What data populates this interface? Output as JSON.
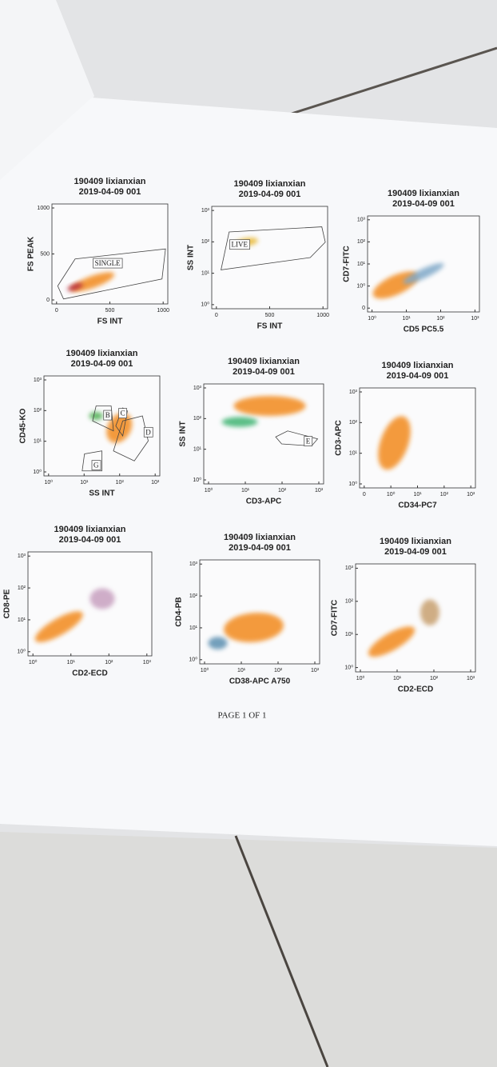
{
  "panels": [
    {
      "title": "190409 lixianxian",
      "subtitle": "2019-04-09 001",
      "x_label": "FS INT",
      "y_label": "FS PEAK",
      "x_ticks": [
        "0",
        "500",
        "1000"
      ],
      "y_ticks": [
        "0",
        "500",
        "1000"
      ],
      "gates": [
        "SINGLE"
      ]
    },
    {
      "title": "190409 lixianxian",
      "subtitle": "2019-04-09 001",
      "x_label": "FS INT",
      "y_label": "SS INT",
      "x_ticks": [
        "0",
        "500",
        "1000"
      ],
      "y_ticks": [
        "10⁰",
        "10¹",
        "10²",
        "10³"
      ],
      "gates": [
        "LIVE"
      ]
    },
    {
      "title": "190409 lixianxian",
      "subtitle": "2019-04-09 001",
      "x_label": "CD5 PC5.5",
      "y_label": "CD7-FITC",
      "x_ticks": [
        "10⁰",
        "10¹",
        "10²",
        "10³"
      ],
      "y_ticks": [
        "0",
        "10⁰",
        "10¹",
        "10²",
        "10³"
      ],
      "gates": []
    },
    {
      "title": "190409 lixianxian",
      "subtitle": "2019-04-09 001",
      "x_label": "SS INT",
      "y_label": "CD45-KO",
      "x_ticks": [
        "10⁰",
        "10¹",
        "10²",
        "10³"
      ],
      "y_ticks": [
        "10⁰",
        "10¹",
        "10²",
        "10³"
      ],
      "gates": [
        "B",
        "C",
        "D",
        "G"
      ]
    },
    {
      "title": "190409 lixianxian",
      "subtitle": "2019-04-09 001",
      "x_label": "CD3-APC",
      "y_label": "SS INT",
      "x_ticks": [
        "10⁰",
        "10¹",
        "10²",
        "10³"
      ],
      "y_ticks": [
        "10⁰",
        "10¹",
        "10²",
        "10³"
      ],
      "gates": [
        "E"
      ]
    },
    {
      "title": "190409 lixianxian",
      "subtitle": "2019-04-09 001",
      "x_label": "CD34-PC7",
      "y_label": "CD3-APC",
      "x_ticks": [
        "0",
        "10⁰",
        "10¹",
        "10²",
        "10³"
      ],
      "y_ticks": [
        "10⁰",
        "10¹",
        "10²",
        "10³"
      ],
      "gates": []
    },
    {
      "title": "190409 lixianxian",
      "subtitle": "2019-04-09 001",
      "x_label": "CD2-ECD",
      "y_label": "CD8-PE",
      "x_ticks": [
        "10⁰",
        "10¹",
        "10²",
        "10³"
      ],
      "y_ticks": [
        "10⁰",
        "10¹",
        "10²",
        "10³"
      ],
      "gates": []
    },
    {
      "title": "190409 lixianxian",
      "subtitle": "2019-04-09 001",
      "x_label": "CD38-APC A750",
      "y_label": "CD4-PB",
      "x_ticks": [
        "10⁰",
        "10¹",
        "10²",
        "10³"
      ],
      "y_ticks": [
        "10⁰",
        "10¹",
        "10²",
        "10³"
      ],
      "gates": []
    },
    {
      "title": "190409 lixianxian",
      "subtitle": "2019-04-09 001",
      "x_label": "CD2-ECD",
      "y_label": "CD7-FITC",
      "x_ticks": [
        "10⁰",
        "10¹",
        "10²",
        "10³"
      ],
      "y_ticks": [
        "10⁰",
        "10¹",
        "10²",
        "10³"
      ],
      "gates": []
    }
  ],
  "footer": "PAGE 1 OF 1"
}
